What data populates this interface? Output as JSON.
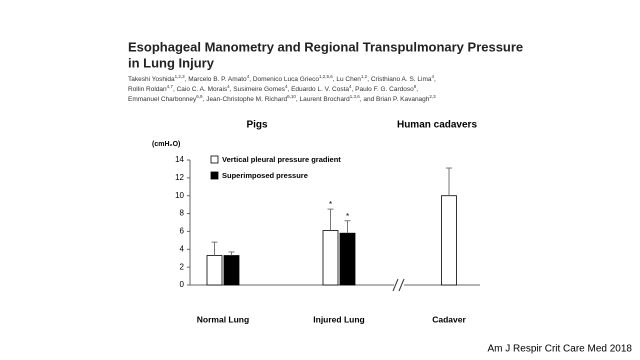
{
  "paper": {
    "title_lines": [
      "Esophageal Manometry and Regional Transpulmonary Pressure",
      "in Lung Injury"
    ],
    "author_lines": [
      [
        {
          "name": "Takeshi Yoshida",
          "affil": "1,2,3"
        },
        {
          "name": "Marcelo B. P. Amato",
          "affil": "4"
        },
        {
          "name": "Domenico Luca Grieco",
          "affil": "1,2,5,6"
        },
        {
          "name": "Lu Chen",
          "affil": "1,2"
        },
        {
          "name": "Cristhiano A. S. Lima",
          "affil": "4"
        }
      ],
      [
        {
          "name": "Rollin Roldan",
          "affil": "4,7"
        },
        {
          "name": "Caio C. A. Morais",
          "affil": "4"
        },
        {
          "name": "Susimeire Gomes",
          "affil": "4"
        },
        {
          "name": "Eduardo L. V. Costa",
          "affil": "4"
        },
        {
          "name": "Paulo F. G. Cardoso",
          "affil": "8"
        }
      ],
      [
        {
          "name": "Emmanuel Charbonney",
          "affil": "6,9"
        },
        {
          "name": "Jean-Christophe M. Richard",
          "affil": "6,10"
        },
        {
          "name": "Laurent Brochard",
          "affil": "1,3,6"
        },
        {
          "name": "and Brian P. Kavanagh",
          "affil": "2,3"
        }
      ]
    ]
  },
  "citation": "Am J Respir Crit Care Med 2018",
  "chart_data": {
    "type": "bar",
    "group_titles": [
      "Pigs",
      "Human cadavers"
    ],
    "y_label": "(cmH₂O)",
    "categories": [
      "Normal Lung",
      "Injured Lung",
      "Cadaver"
    ],
    "series": [
      {
        "name": "Vertical pleural pressure gradient",
        "color": "#ffffff",
        "values": [
          3.3,
          6.1,
          10.0
        ],
        "errors": [
          1.5,
          2.4,
          3.1
        ]
      },
      {
        "name": "Superimposed pressure",
        "color": "#000000",
        "values": [
          3.3,
          5.8,
          null
        ],
        "errors": [
          0.4,
          1.4,
          null
        ]
      }
    ],
    "annotations": [
      "*",
      "*"
    ],
    "ylim": [
      0,
      14
    ],
    "yticks": [
      0,
      2,
      4,
      6,
      8,
      10,
      12,
      14
    ],
    "grid": false
  }
}
